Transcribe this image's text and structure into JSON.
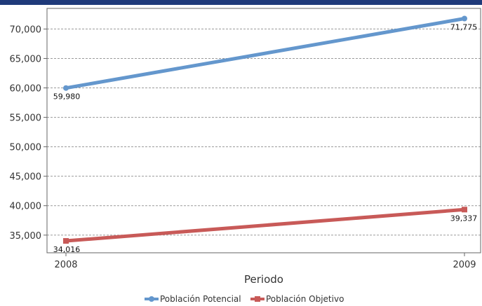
{
  "colors": {
    "header_bar": "#1f3a7a",
    "grid": "#9a9a9a",
    "plot_border": "#666666"
  },
  "chart_data": {
    "type": "line",
    "title": "",
    "xlabel": "Periodo",
    "ylabel": "",
    "categories": [
      "2008",
      "2009"
    ],
    "yticks": [
      "35,000",
      "40,000",
      "45,000",
      "50,000",
      "55,000",
      "60,000",
      "65,000",
      "70,000"
    ],
    "ylim": [
      32000,
      73500
    ],
    "grid": true,
    "legend_position": "bottom",
    "series": [
      {
        "name": "Población Potencial",
        "color": "#6497cd",
        "marker": "circle",
        "values": [
          59980,
          71775
        ],
        "labels": [
          "59,980",
          "71,775"
        ]
      },
      {
        "name": "Población Objetivo",
        "color": "#c85a58",
        "marker": "square",
        "values": [
          34016,
          39337
        ],
        "labels": [
          "34,016",
          "39,337"
        ]
      }
    ]
  }
}
